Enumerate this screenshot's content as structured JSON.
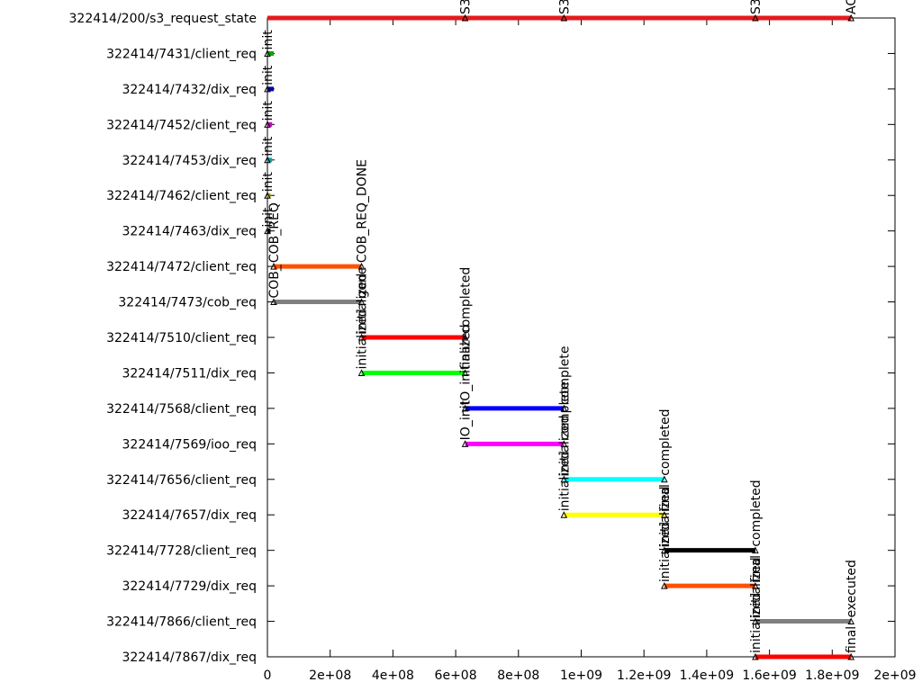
{
  "chart_data": {
    "type": "timeline",
    "title": "",
    "xlabel": "",
    "ylabel": "",
    "xlim": [
      0,
      2000000000
    ],
    "x_ticks": [
      {
        "value": 0,
        "label": "0"
      },
      {
        "value": 200000000,
        "label": "2e+08"
      },
      {
        "value": 400000000,
        "label": "4e+08"
      },
      {
        "value": 600000000,
        "label": "6e+08"
      },
      {
        "value": 800000000,
        "label": "8e+08"
      },
      {
        "value": 1000000000,
        "label": "1e+09"
      },
      {
        "value": 1200000000,
        "label": "1.2e+09"
      },
      {
        "value": 1400000000,
        "label": "1.4e+09"
      },
      {
        "value": 1600000000,
        "label": "1.6e+09"
      },
      {
        "value": 1800000000,
        "label": "1.8e+09"
      },
      {
        "value": 2000000000,
        "label": "2e+09"
      }
    ],
    "rows": [
      {
        "label": "322414/200/s3_request_state",
        "start": 0,
        "end": 1860000000,
        "color": "#e41a1c",
        "events": [
          {
            "x": 630000000,
            "text": "S3"
          },
          {
            "x": 945000000,
            "text": "S3"
          },
          {
            "x": 1555000000,
            "text": "S3"
          },
          {
            "x": 1860000000,
            "text": "AC"
          }
        ]
      },
      {
        "label": "322414/7431/client_req",
        "start": 0,
        "end": 20000000,
        "color": "#00aa00",
        "events": [
          {
            "x": 0,
            "text": "init"
          }
        ]
      },
      {
        "label": "322414/7432/dix_req",
        "start": 0,
        "end": 20000000,
        "color": "#0000aa",
        "events": [
          {
            "x": 0,
            "text": "init"
          }
        ]
      },
      {
        "label": "322414/7452/client_req",
        "start": 0,
        "end": 15000000,
        "color": "#cc00cc",
        "events": [
          {
            "x": 0,
            "text": "init"
          }
        ]
      },
      {
        "label": "322414/7453/dix_req",
        "start": 0,
        "end": 15000000,
        "color": "#00aaaa",
        "events": [
          {
            "x": 0,
            "text": "init"
          }
        ]
      },
      {
        "label": "322414/7462/client_req",
        "start": 0,
        "end": 10000000,
        "color": "#aaaa00",
        "events": [
          {
            "x": 0,
            "text": "init"
          }
        ]
      },
      {
        "label": "322414/7463/dix_req",
        "start": 0,
        "end": 10000000,
        "color": "#000000",
        "events": [
          {
            "x": 0,
            "text": "init"
          }
        ]
      },
      {
        "label": "322414/7472/client_req",
        "start": 20000000,
        "end": 300000000,
        "color": "#ff5000",
        "events": [
          {
            "x": 20000000,
            "text": "COB_REQ"
          },
          {
            "x": 300000000,
            "text": "COB_REQ_DONE"
          }
        ]
      },
      {
        "label": "322414/7473/cob_req",
        "start": 20000000,
        "end": 300000000,
        "color": "#808080",
        "events": [
          {
            "x": 20000000,
            "text": "COB_"
          },
          {
            "x": 300000000,
            "text": "gone"
          }
        ]
      },
      {
        "label": "322414/7510/client_req",
        "start": 300000000,
        "end": 630000000,
        "color": "#ff0000",
        "events": [
          {
            "x": 300000000,
            "text": "initialized"
          },
          {
            "x": 630000000,
            "text": "completed"
          }
        ]
      },
      {
        "label": "322414/7511/dix_req",
        "start": 300000000,
        "end": 630000000,
        "color": "#00ff00",
        "events": [
          {
            "x": 300000000,
            "text": "initialized"
          },
          {
            "x": 630000000,
            "text": "final"
          }
        ]
      },
      {
        "label": "322414/7568/client_req",
        "start": 630000000,
        "end": 945000000,
        "color": "#0000ff",
        "events": [
          {
            "x": 630000000,
            "text": "IO_initialized"
          },
          {
            "x": 945000000,
            "text": "complete"
          }
        ]
      },
      {
        "label": "322414/7569/ioo_req",
        "start": 630000000,
        "end": 945000000,
        "color": "#ff00ff",
        "events": [
          {
            "x": 630000000,
            "text": "IO_init"
          },
          {
            "x": 945000000,
            "text": "complete"
          }
        ]
      },
      {
        "label": "322414/7656/client_req",
        "start": 945000000,
        "end": 1265000000,
        "color": "#00ffff",
        "events": [
          {
            "x": 945000000,
            "text": "initialized"
          },
          {
            "x": 1265000000,
            "text": "completed"
          }
        ]
      },
      {
        "label": "322414/7657/dix_req",
        "start": 945000000,
        "end": 1265000000,
        "color": "#ffff00",
        "events": [
          {
            "x": 945000000,
            "text": "initialized"
          },
          {
            "x": 1265000000,
            "text": "final"
          }
        ]
      },
      {
        "label": "322414/7728/client_req",
        "start": 1265000000,
        "end": 1555000000,
        "color": "#000000",
        "events": [
          {
            "x": 1265000000,
            "text": "initialized"
          },
          {
            "x": 1555000000,
            "text": "completed"
          }
        ]
      },
      {
        "label": "322414/7729/dix_req",
        "start": 1265000000,
        "end": 1555000000,
        "color": "#ff5000",
        "events": [
          {
            "x": 1265000000,
            "text": "initialized"
          },
          {
            "x": 1555000000,
            "text": "final"
          }
        ]
      },
      {
        "label": "322414/7866/client_req",
        "start": 1555000000,
        "end": 1860000000,
        "color": "#808080",
        "events": [
          {
            "x": 1555000000,
            "text": "initialized"
          },
          {
            "x": 1860000000,
            "text": "executed"
          }
        ]
      },
      {
        "label": "322414/7867/dix_req",
        "start": 1555000000,
        "end": 1860000000,
        "color": "#ff0000",
        "events": [
          {
            "x": 1555000000,
            "text": "initialized"
          },
          {
            "x": 1860000000,
            "text": "final"
          }
        ]
      }
    ]
  }
}
